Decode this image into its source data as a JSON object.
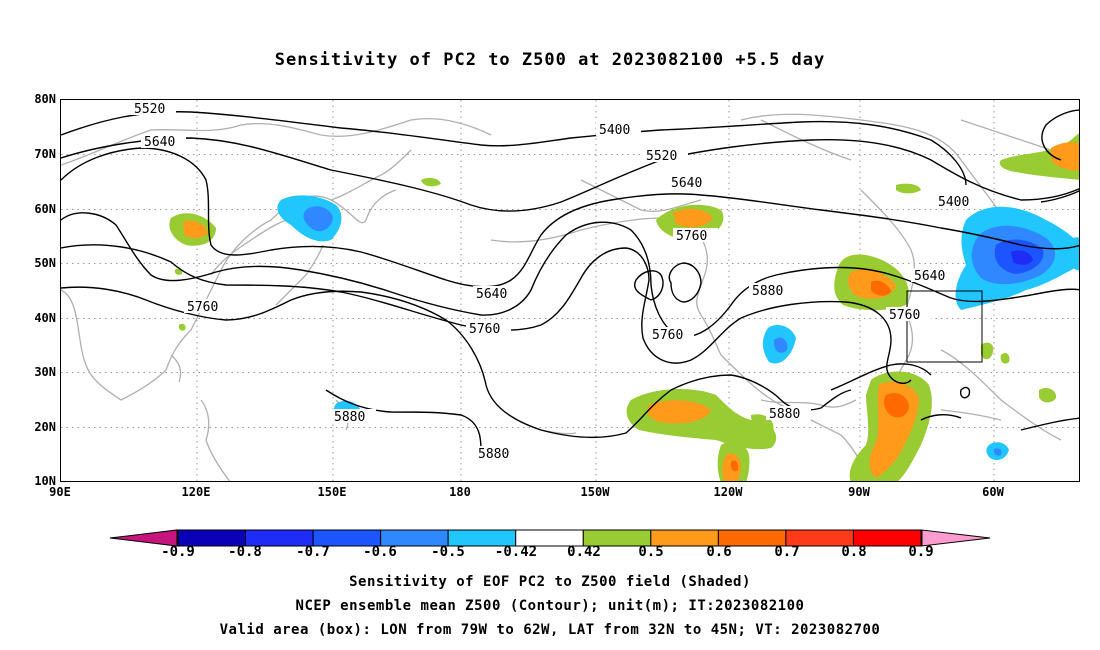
{
  "title": "Sensitivity of PC2 to Z500 at 2023082100 +5.5 day",
  "map": {
    "lat_labels": [
      "80N",
      "70N",
      "60N",
      "50N",
      "40N",
      "30N",
      "20N",
      "10N"
    ],
    "lon_labels": [
      "90E",
      "120E",
      "150E",
      "180",
      "150W",
      "120W",
      "90W",
      "60W"
    ],
    "contour_labels": [
      "5520",
      "5640",
      "5400",
      "5520",
      "5640",
      "5760",
      "5640",
      "5760",
      "5760",
      "5880",
      "5760",
      "5400",
      "5640",
      "5760",
      "5880",
      "5880",
      "5880"
    ],
    "valid_box": {
      "lon_from": "79W",
      "lon_to": "62W",
      "lat_from": "32N",
      "lat_to": "45N"
    }
  },
  "colorbar": {
    "labels": [
      "-0.9",
      "-0.8",
      "-0.7",
      "-0.6",
      "-0.5",
      "-0.42",
      "0.42",
      "0.5",
      "0.6",
      "0.7",
      "0.8",
      "0.9"
    ],
    "colors": [
      "#0a00b8",
      "#1f2cf5",
      "#1c55ff",
      "#2f88ff",
      "#21c6ff",
      "#ffffff",
      "#99cc33",
      "#ff9a1a",
      "#ff6a00",
      "#ff3a1a",
      "#ff0000"
    ],
    "low_extend_color": "#c8157e",
    "high_extend_color": "#ff9ccf"
  },
  "captions": [
    "Sensitivity of EOF PC2 to Z500 field (Shaded)",
    "NCEP ensemble mean Z500 (Contour); unit(m); IT:2023082100",
    "Valid area (box): LON from 79W to 62W, LAT from 32N to 45N; VT: 2023082700"
  ]
}
